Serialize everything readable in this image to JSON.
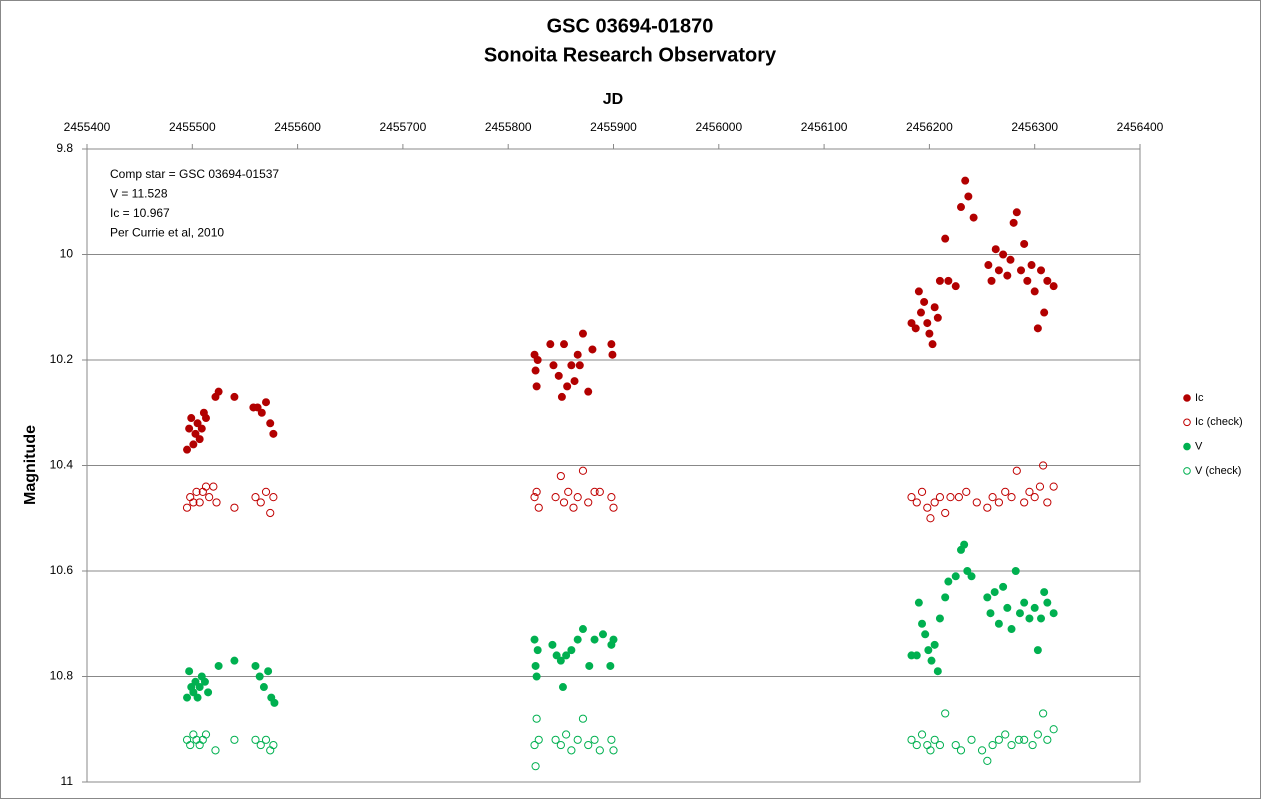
{
  "chart_data": {
    "type": "scatter",
    "title": "GSC 03694-01870",
    "subtitle": "Sonoita Research Observatory",
    "x_label": "JD",
    "y_label": "Magnitude",
    "annotations": [
      "Comp star = GSC 03694-01537",
      "V = 11.528",
      "Ic = 10.967",
      "Per Currie et al, 2010"
    ],
    "xlim": [
      2455400,
      2456400
    ],
    "xticks": [
      2455400,
      2455500,
      2455600,
      2455700,
      2455800,
      2455900,
      2456000,
      2456100,
      2456200,
      2456300,
      2456400
    ],
    "x_axis_position": "top",
    "ylim": [
      9.8,
      11
    ],
    "yticks": [
      9.8,
      10,
      10.2,
      10.4,
      10.6,
      10.8,
      11
    ],
    "y_inverted": true,
    "grid": true,
    "legend": "right",
    "series": [
      {
        "name": "Ic",
        "color": "#b20000",
        "marker": "filled",
        "x": [
          2455495,
          2455497,
          2455499,
          2455501,
          2455503,
          2455505,
          2455507,
          2455509,
          2455511,
          2455513,
          2455522,
          2455525,
          2455540,
          2455558,
          2455562,
          2455566,
          2455570,
          2455574,
          2455577,
          2455825,
          2455826,
          2455827,
          2455828,
          2455840,
          2455843,
          2455848,
          2455851,
          2455853,
          2455856,
          2455860,
          2455863,
          2455866,
          2455868,
          2455871,
          2455876,
          2455880,
          2455898,
          2455899,
          2456183,
          2456187,
          2456190,
          2456192,
          2456195,
          2456198,
          2456200,
          2456203,
          2456205,
          2456208,
          2456210,
          2456215,
          2456218,
          2456225,
          2456230,
          2456234,
          2456237,
          2456242,
          2456256,
          2456259,
          2456263,
          2456266,
          2456270,
          2456274,
          2456277,
          2456280,
          2456283,
          2456287,
          2456290,
          2456293,
          2456297,
          2456300,
          2456303,
          2456306,
          2456309,
          2456312,
          2456318
        ],
        "values": [
          10.37,
          10.33,
          10.31,
          10.36,
          10.34,
          10.32,
          10.35,
          10.33,
          10.3,
          10.31,
          10.27,
          10.26,
          10.27,
          10.29,
          10.29,
          10.3,
          10.28,
          10.32,
          10.34,
          10.19,
          10.22,
          10.25,
          10.2,
          10.17,
          10.21,
          10.23,
          10.27,
          10.17,
          10.25,
          10.21,
          10.24,
          10.19,
          10.21,
          10.15,
          10.26,
          10.18,
          10.17,
          10.19,
          10.13,
          10.14,
          10.07,
          10.11,
          10.09,
          10.13,
          10.15,
          10.17,
          10.1,
          10.12,
          10.05,
          9.97,
          10.05,
          10.06,
          9.91,
          9.86,
          9.89,
          9.93,
          10.02,
          10.05,
          9.99,
          10.03,
          10.0,
          10.04,
          10.01,
          9.94,
          9.92,
          10.03,
          9.98,
          10.05,
          10.02,
          10.07,
          10.14,
          10.03,
          10.11,
          10.05,
          10.06
        ]
      },
      {
        "name": "Ic (check)",
        "color": "#c00000",
        "marker": "hollow",
        "x": [
          2455495,
          2455498,
          2455501,
          2455504,
          2455507,
          2455510,
          2455513,
          2455516,
          2455520,
          2455523,
          2455540,
          2455560,
          2455565,
          2455570,
          2455574,
          2455577,
          2455825,
          2455827,
          2455829,
          2455845,
          2455850,
          2455853,
          2455857,
          2455862,
          2455866,
          2455871,
          2455876,
          2455882,
          2455887,
          2455898,
          2455900,
          2456183,
          2456188,
          2456193,
          2456198,
          2456201,
          2456205,
          2456210,
          2456215,
          2456220,
          2456228,
          2456235,
          2456245,
          2456255,
          2456260,
          2456266,
          2456272,
          2456278,
          2456283,
          2456290,
          2456295,
          2456300,
          2456305,
          2456308,
          2456312,
          2456318
        ],
        "values": [
          10.48,
          10.46,
          10.47,
          10.45,
          10.47,
          10.45,
          10.44,
          10.46,
          10.44,
          10.47,
          10.48,
          10.46,
          10.47,
          10.45,
          10.49,
          10.46,
          10.46,
          10.45,
          10.48,
          10.46,
          10.42,
          10.47,
          10.45,
          10.48,
          10.46,
          10.41,
          10.47,
          10.45,
          10.45,
          10.46,
          10.48,
          10.46,
          10.47,
          10.45,
          10.48,
          10.5,
          10.47,
          10.46,
          10.49,
          10.46,
          10.46,
          10.45,
          10.47,
          10.48,
          10.46,
          10.47,
          10.45,
          10.46,
          10.41,
          10.47,
          10.45,
          10.46,
          10.44,
          10.4,
          10.47,
          10.44
        ]
      },
      {
        "name": "V",
        "color": "#00b050",
        "marker": "filled",
        "x": [
          2455495,
          2455497,
          2455499,
          2455501,
          2455503,
          2455505,
          2455507,
          2455509,
          2455512,
          2455515,
          2455525,
          2455540,
          2455560,
          2455564,
          2455568,
          2455572,
          2455575,
          2455578,
          2455825,
          2455826,
          2455827,
          2455828,
          2455842,
          2455846,
          2455850,
          2455852,
          2455855,
          2455860,
          2455866,
          2455871,
          2455877,
          2455882,
          2455890,
          2455897,
          2455898,
          2455900,
          2456183,
          2456188,
          2456190,
          2456193,
          2456196,
          2456199,
          2456202,
          2456205,
          2456208,
          2456210,
          2456215,
          2456218,
          2456225,
          2456230,
          2456233,
          2456236,
          2456240,
          2456255,
          2456258,
          2456262,
          2456266,
          2456270,
          2456274,
          2456278,
          2456282,
          2456286,
          2456290,
          2456295,
          2456300,
          2456303,
          2456306,
          2456309,
          2456312,
          2456318
        ],
        "values": [
          10.84,
          10.79,
          10.82,
          10.83,
          10.81,
          10.84,
          10.82,
          10.8,
          10.81,
          10.83,
          10.78,
          10.77,
          10.78,
          10.8,
          10.82,
          10.79,
          10.84,
          10.85,
          10.73,
          10.78,
          10.8,
          10.75,
          10.74,
          10.76,
          10.77,
          10.82,
          10.76,
          10.75,
          10.73,
          10.71,
          10.78,
          10.73,
          10.72,
          10.78,
          10.74,
          10.73,
          10.76,
          10.76,
          10.66,
          10.7,
          10.72,
          10.75,
          10.77,
          10.74,
          10.79,
          10.69,
          10.65,
          10.62,
          10.61,
          10.56,
          10.55,
          10.6,
          10.61,
          10.65,
          10.68,
          10.64,
          10.7,
          10.63,
          10.67,
          10.71,
          10.6,
          10.68,
          10.66,
          10.69,
          10.67,
          10.75,
          10.69,
          10.64,
          10.66,
          10.68
        ]
      },
      {
        "name": "V (check)",
        "color": "#00b050",
        "marker": "hollow",
        "x": [
          2455495,
          2455498,
          2455501,
          2455504,
          2455507,
          2455510,
          2455513,
          2455522,
          2455540,
          2455560,
          2455565,
          2455570,
          2455574,
          2455577,
          2455825,
          2455827,
          2455829,
          2455826,
          2455845,
          2455850,
          2455855,
          2455860,
          2455866,
          2455871,
          2455876,
          2455882,
          2455887,
          2455898,
          2455900,
          2456183,
          2456188,
          2456193,
          2456198,
          2456201,
          2456205,
          2456210,
          2456215,
          2456225,
          2456230,
          2456240,
          2456250,
          2456255,
          2456260,
          2456266,
          2456272,
          2456278,
          2456285,
          2456290,
          2456298,
          2456303,
          2456308,
          2456312,
          2456318
        ],
        "values": [
          10.92,
          10.93,
          10.91,
          10.92,
          10.93,
          10.92,
          10.91,
          10.94,
          10.92,
          10.92,
          10.93,
          10.92,
          10.94,
          10.93,
          10.93,
          10.88,
          10.92,
          10.97,
          10.92,
          10.93,
          10.91,
          10.94,
          10.92,
          10.88,
          10.93,
          10.92,
          10.94,
          10.92,
          10.94,
          10.92,
          10.93,
          10.91,
          10.93,
          10.94,
          10.92,
          10.93,
          10.87,
          10.93,
          10.94,
          10.92,
          10.94,
          10.96,
          10.93,
          10.92,
          10.91,
          10.93,
          10.92,
          10.92,
          10.93,
          10.91,
          10.87,
          10.92,
          10.9
        ]
      }
    ]
  }
}
